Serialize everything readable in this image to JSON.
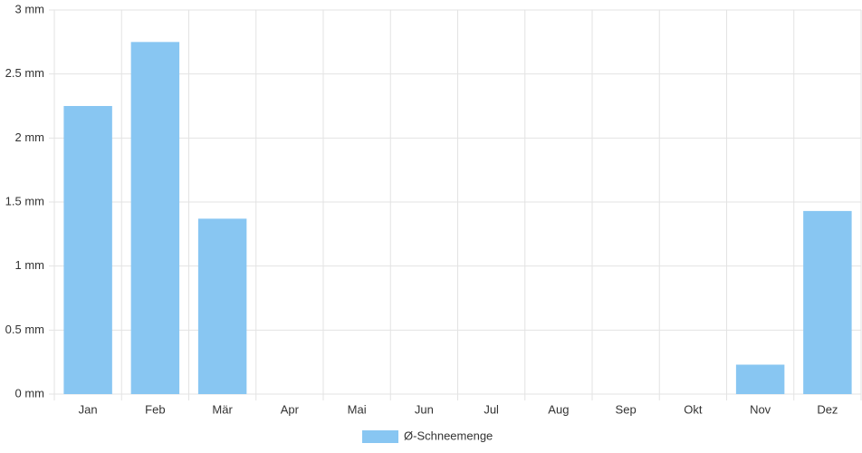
{
  "chart_data": {
    "type": "bar",
    "categories": [
      "Jan",
      "Feb",
      "Mär",
      "Apr",
      "Mai",
      "Jun",
      "Jul",
      "Aug",
      "Sep",
      "Okt",
      "Nov",
      "Dez"
    ],
    "series": [
      {
        "name": "Ø-Schneemenge",
        "color": "#88c6f2",
        "values": [
          2.25,
          2.75,
          1.37,
          0,
          0,
          0,
          0,
          0,
          0,
          0,
          0.23,
          1.43
        ]
      }
    ],
    "ylim": [
      0,
      3
    ],
    "yticks": [
      {
        "value": 0,
        "label": "0 mm"
      },
      {
        "value": 0.5,
        "label": "0.5 mm"
      },
      {
        "value": 1,
        "label": "1 mm"
      },
      {
        "value": 1.5,
        "label": "1.5 mm"
      },
      {
        "value": 2,
        "label": "2 mm"
      },
      {
        "value": 2.5,
        "label": "2.5 mm"
      },
      {
        "value": 3,
        "label": "3 mm"
      }
    ],
    "grid": true,
    "legend": "bottom"
  }
}
